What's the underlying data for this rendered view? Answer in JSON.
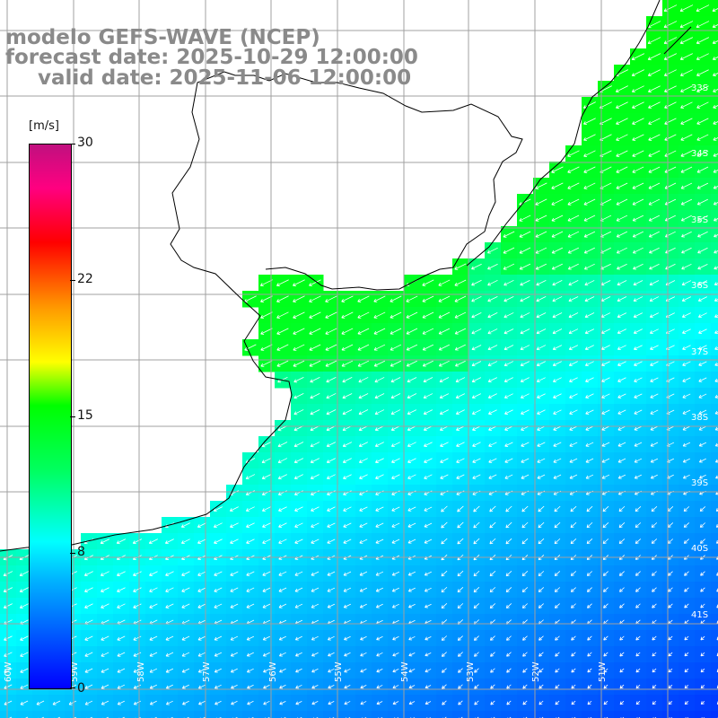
{
  "title": {
    "line1": "modelo GEFS-WAVE (NCEP)",
    "line2": "forecast date: 2025-10-29 12:00:00",
    "line3": "valid date: 2025-11-06 12:00:00"
  },
  "colorbar": {
    "unit": "[m/s]",
    "ticks": [
      "30",
      "22",
      "15",
      "8",
      "0"
    ],
    "colors": [
      "#0000ff",
      "#00b4ff",
      "#00ffff",
      "#00ff60",
      "#00ff00",
      "#ffff00",
      "#ff9900",
      "#ff0000",
      "#c0107f"
    ]
  },
  "map": {
    "lat_labels": [
      "33S",
      "34S",
      "35S",
      "36S",
      "37S",
      "38S",
      "39S",
      "40S",
      "41S"
    ],
    "lon_labels": [
      "60W",
      "59W",
      "58W",
      "57W",
      "56W",
      "55W",
      "54W",
      "53W",
      "52W",
      "51W"
    ],
    "land_color": "#ffffff",
    "grid_color": "#a0a0a0",
    "arrow_color": "#ffffff"
  }
}
